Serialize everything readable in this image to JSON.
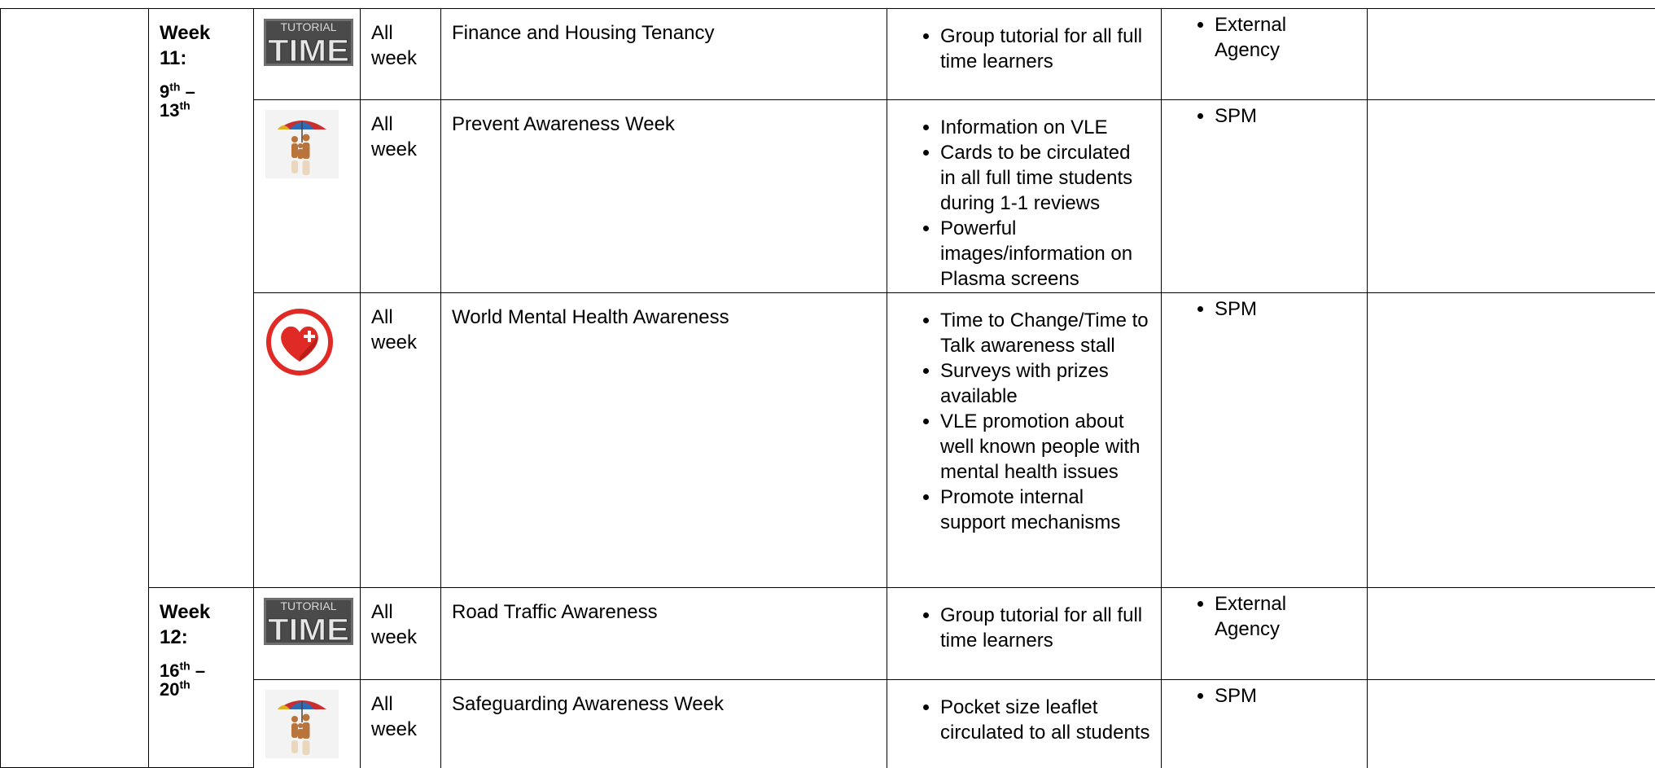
{
  "weeks": [
    {
      "title": "Week 11:",
      "start": "9",
      "start_suffix": "th",
      "separator": "–",
      "end": "13",
      "end_suffix": "th",
      "entries": [
        {
          "icon_text": [
            "TUTORIAL",
            "TIME"
          ],
          "when": "All week",
          "event": "Finance and Housing Tenancy",
          "activities": [
            "Group tutorial for all full time learners"
          ],
          "delivered_by": [
            "External Agency"
          ]
        },
        {
          "when": "All week",
          "event": "Prevent Awareness Week",
          "activities": [
            "Information on VLE",
            "Cards to be circulated in all full time students during 1-1 reviews",
            "Powerful images/information on Plasma screens"
          ],
          "delivered_by": [
            "SPM"
          ]
        },
        {
          "when": "All week",
          "event": "World Mental Health Awareness",
          "activities": [
            "Time to Change/Time to Talk awareness stall",
            "Surveys with prizes available",
            "VLE promotion about well known people with mental health issues",
            "Promote internal support mechanisms"
          ],
          "delivered_by": [
            "SPM"
          ]
        }
      ]
    },
    {
      "title": "Week 12:",
      "start": "16",
      "start_suffix": "th",
      "separator": "–",
      "end": "20",
      "end_suffix": "th",
      "entries": [
        {
          "icon_text": [
            "TUTORIAL",
            "TIME"
          ],
          "when": "All week",
          "event": "Road Traffic Awareness",
          "activities": [
            "Group tutorial for all full time learners"
          ],
          "delivered_by": [
            "External Agency"
          ]
        },
        {
          "when": "All week",
          "event": "Safeguarding Awareness Week",
          "activities": [
            "Pocket size leaflet circulated to all students"
          ],
          "delivered_by": [
            "SPM"
          ]
        }
      ]
    }
  ]
}
